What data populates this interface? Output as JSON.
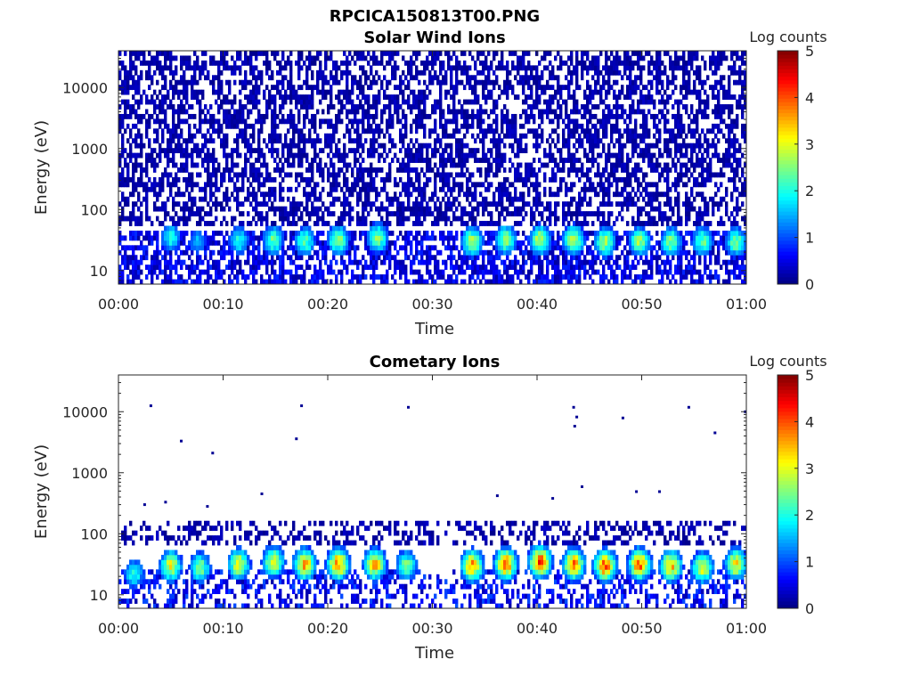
{
  "figure": {
    "title": "RPCICA150813T00.PNG"
  },
  "chart_data": [
    {
      "type": "heatmap",
      "title": "Solar Wind Ions",
      "xlabel": "Time",
      "ylabel": "Energy (eV)",
      "x_ticks": [
        "00:00",
        "00:10",
        "00:20",
        "00:30",
        "00:40",
        "00:50",
        "01:00"
      ],
      "xlim_minutes": [
        0,
        60
      ],
      "yscale": "log",
      "ylim": [
        6,
        40000
      ],
      "y_ticks": [
        10,
        100,
        1000,
        10000
      ],
      "y_tick_labels": [
        "10",
        "100",
        "1000",
        "10000"
      ],
      "colorbar": {
        "label": "Log counts",
        "ticks": [
          "0",
          "1",
          "2",
          "3",
          "4",
          "5"
        ],
        "range": [
          0,
          5
        ],
        "colormap": "jet"
      },
      "background_noise": {
        "energy_range_eV": [
          50,
          40000
        ],
        "typical_log_counts": 0.3,
        "fill_fraction": 0.55
      },
      "low_energy_band": {
        "energy_range_eV": [
          6,
          45
        ],
        "typical_log_counts": 0.5,
        "fill_fraction": 0.6
      },
      "bursts": [
        {
          "t_min": 5.0,
          "energy_eV": 35,
          "peak_log_counts": 2.0
        },
        {
          "t_min": 7.5,
          "energy_eV": 30,
          "peak_log_counts": 1.5
        },
        {
          "t_min": 11.5,
          "energy_eV": 32,
          "peak_log_counts": 2.0
        },
        {
          "t_min": 14.8,
          "energy_eV": 32,
          "peak_log_counts": 2.4
        },
        {
          "t_min": 17.8,
          "energy_eV": 30,
          "peak_log_counts": 2.3
        },
        {
          "t_min": 21.0,
          "energy_eV": 32,
          "peak_log_counts": 2.6
        },
        {
          "t_min": 24.8,
          "energy_eV": 35,
          "peak_log_counts": 2.5
        },
        {
          "t_min": 33.8,
          "energy_eV": 30,
          "peak_log_counts": 2.7
        },
        {
          "t_min": 37.0,
          "energy_eV": 32,
          "peak_log_counts": 2.6
        },
        {
          "t_min": 40.3,
          "energy_eV": 32,
          "peak_log_counts": 2.8
        },
        {
          "t_min": 43.5,
          "energy_eV": 32,
          "peak_log_counts": 2.8
        },
        {
          "t_min": 46.5,
          "energy_eV": 30,
          "peak_log_counts": 2.7
        },
        {
          "t_min": 49.8,
          "energy_eV": 30,
          "peak_log_counts": 2.6
        },
        {
          "t_min": 52.8,
          "energy_eV": 30,
          "peak_log_counts": 2.5
        },
        {
          "t_min": 55.8,
          "energy_eV": 30,
          "peak_log_counts": 2.4
        },
        {
          "t_min": 59.0,
          "energy_eV": 30,
          "peak_log_counts": 2.4
        }
      ]
    },
    {
      "type": "heatmap",
      "title": "Cometary Ions",
      "xlabel": "Time",
      "ylabel": "Energy (eV)",
      "x_ticks": [
        "00:00",
        "00:10",
        "00:20",
        "00:30",
        "00:40",
        "00:50",
        "01:00"
      ],
      "xlim_minutes": [
        0,
        60
      ],
      "yscale": "log",
      "ylim": [
        6,
        40000
      ],
      "y_ticks": [
        10,
        100,
        1000,
        10000
      ],
      "y_tick_labels": [
        "10",
        "100",
        "1000",
        "10000"
      ],
      "colorbar": {
        "label": "Log counts",
        "ticks": [
          "0",
          "1",
          "2",
          "3",
          "4",
          "5"
        ],
        "range": [
          0,
          5
        ],
        "colormap": "jet"
      },
      "background_noise": {
        "energy_range_eV": [
          70,
          170
        ],
        "typical_log_counts": 0.3,
        "fill_fraction": 0.35
      },
      "low_energy_band": {
        "energy_range_eV": [
          6,
          25
        ],
        "typical_log_counts": 0.6,
        "fill_fraction": 0.4
      },
      "bursts": [
        {
          "t_min": 1.5,
          "energy_eV": 22,
          "peak_log_counts": 2.0
        },
        {
          "t_min": 5.0,
          "energy_eV": 30,
          "peak_log_counts": 3.0
        },
        {
          "t_min": 7.8,
          "energy_eV": 28,
          "peak_log_counts": 2.5
        },
        {
          "t_min": 11.5,
          "energy_eV": 32,
          "peak_log_counts": 3.0
        },
        {
          "t_min": 14.8,
          "energy_eV": 35,
          "peak_log_counts": 3.0
        },
        {
          "t_min": 17.8,
          "energy_eV": 32,
          "peak_log_counts": 3.5
        },
        {
          "t_min": 21.0,
          "energy_eV": 32,
          "peak_log_counts": 3.7
        },
        {
          "t_min": 24.5,
          "energy_eV": 32,
          "peak_log_counts": 3.4
        },
        {
          "t_min": 27.5,
          "energy_eV": 30,
          "peak_log_counts": 2.5
        },
        {
          "t_min": 33.8,
          "energy_eV": 30,
          "peak_log_counts": 3.6
        },
        {
          "t_min": 37.0,
          "energy_eV": 32,
          "peak_log_counts": 3.8
        },
        {
          "t_min": 40.3,
          "energy_eV": 35,
          "peak_log_counts": 4.0
        },
        {
          "t_min": 43.5,
          "energy_eV": 32,
          "peak_log_counts": 3.7
        },
        {
          "t_min": 46.5,
          "energy_eV": 30,
          "peak_log_counts": 3.8
        },
        {
          "t_min": 49.8,
          "energy_eV": 32,
          "peak_log_counts": 3.8
        },
        {
          "t_min": 52.8,
          "energy_eV": 30,
          "peak_log_counts": 3.4
        },
        {
          "t_min": 55.8,
          "energy_eV": 28,
          "peak_log_counts": 3.0
        },
        {
          "t_min": 59.0,
          "energy_eV": 32,
          "peak_log_counts": 3.2
        }
      ],
      "isolated_points": [
        {
          "t_min": 3.1,
          "energy_eV": 12500
        },
        {
          "t_min": 6.0,
          "energy_eV": 3300
        },
        {
          "t_min": 9.0,
          "energy_eV": 2100
        },
        {
          "t_min": 17.0,
          "energy_eV": 3600
        },
        {
          "t_min": 17.5,
          "energy_eV": 12500
        },
        {
          "t_min": 27.7,
          "energy_eV": 11800
        },
        {
          "t_min": 43.5,
          "energy_eV": 11800
        },
        {
          "t_min": 43.8,
          "energy_eV": 8200
        },
        {
          "t_min": 43.6,
          "energy_eV": 5800
        },
        {
          "t_min": 48.2,
          "energy_eV": 7900
        },
        {
          "t_min": 54.5,
          "energy_eV": 11800
        },
        {
          "t_min": 57.0,
          "energy_eV": 4500
        },
        {
          "t_min": 59.9,
          "energy_eV": 10000
        },
        {
          "t_min": 44.3,
          "energy_eV": 590
        },
        {
          "t_min": 49.5,
          "energy_eV": 490
        },
        {
          "t_min": 51.7,
          "energy_eV": 490
        },
        {
          "t_min": 13.7,
          "energy_eV": 450
        },
        {
          "t_min": 2.5,
          "energy_eV": 300
        },
        {
          "t_min": 4.5,
          "energy_eV": 330
        },
        {
          "t_min": 8.5,
          "energy_eV": 280
        },
        {
          "t_min": 36.2,
          "energy_eV": 420
        },
        {
          "t_min": 41.5,
          "energy_eV": 380
        }
      ]
    }
  ]
}
